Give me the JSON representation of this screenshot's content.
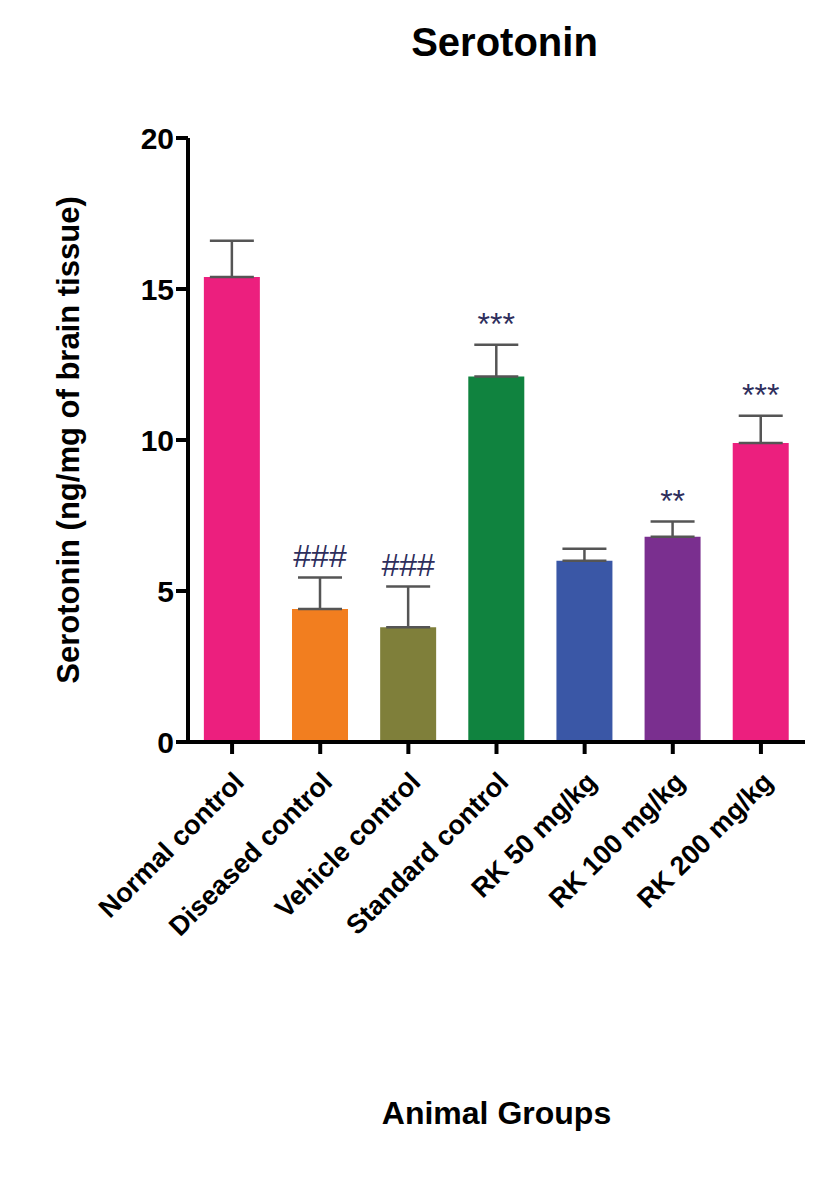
{
  "chart_data": {
    "type": "bar",
    "title": "Serotonin",
    "x_label": "Animal Groups",
    "y_label": "Serotonin (ng/mg of brain tissue)",
    "categories": [
      "Normal control",
      "Diseased control",
      "Vehicle control",
      "Standard control",
      "RK 50 mg/kg",
      "RK 100 mg/kg",
      "RK 200 mg/kg"
    ],
    "values": [
      15.4,
      4.4,
      3.8,
      12.1,
      6.0,
      6.8,
      9.9
    ],
    "errors": [
      1.2,
      1.05,
      1.35,
      1.05,
      0.4,
      0.5,
      0.9
    ],
    "annotations": [
      null,
      "###",
      "###",
      "***",
      null,
      "**",
      "***"
    ],
    "colors": [
      "#ec1f7e",
      "#f27e1f",
      "#7f7f3a",
      "#10833f",
      "#3a57a6",
      "#7a2f8f",
      "#ec1f7e"
    ],
    "ylim": [
      0,
      20
    ],
    "yticks": [
      0,
      5,
      10,
      15,
      20
    ],
    "grid": false
  }
}
